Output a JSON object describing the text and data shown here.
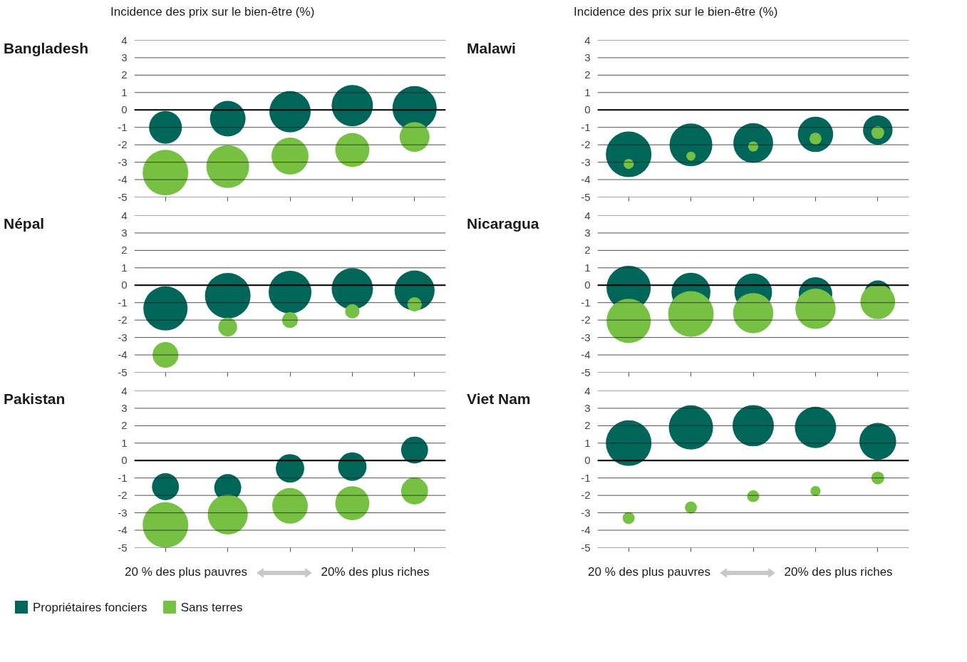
{
  "chart_data": [
    {
      "type": "bubble",
      "title": "Bangladesh",
      "ylabel": "Incidence des prix sur le bien-être (%)",
      "categories": [
        null,
        null,
        null,
        null,
        null
      ],
      "ylim": [
        -5,
        4
      ],
      "yticks": [
        -5,
        -4,
        -3,
        -2,
        -1,
        0,
        1,
        2,
        3,
        4
      ],
      "grid": "y",
      "tick_labels": "y",
      "ref_lines": [
        {
          "axis": "y",
          "value": 0,
          "color": "#000000"
        }
      ],
      "series": [
        {
          "color": "#00665a",
          "values": [
            -1.0,
            -0.5,
            -0.1,
            0.25,
            0.1
          ],
          "sizes": [
            0.52,
            0.61,
            0.82,
            0.82,
            0.94
          ]
        },
        {
          "color": "#76c043",
          "values": [
            -3.6,
            -3.25,
            -2.65,
            -2.3,
            -1.55
          ],
          "sizes": [
            1,
            0.88,
            0.66,
            0.56,
            0.43
          ]
        }
      ]
    },
    {
      "type": "bubble",
      "title": "Malawi",
      "ylabel": "Incidence des prix sur le bien-être (%)",
      "categories": [
        null,
        null,
        null,
        null,
        null
      ],
      "ylim": [
        -5,
        4
      ],
      "yticks": [
        -5,
        -4,
        -3,
        -2,
        -1,
        0,
        1,
        2,
        3,
        4
      ],
      "grid": "y",
      "tick_labels": "y",
      "ref_lines": [
        {
          "axis": "y",
          "value": 0,
          "color": "#000000"
        }
      ],
      "series": [
        {
          "color": "#00665a",
          "values": [
            -2.55,
            -2.0,
            -1.9,
            -1.4,
            -1.15
          ],
          "sizes": [
            1,
            0.88,
            0.76,
            0.6,
            0.42
          ]
        },
        {
          "color": "#76c043",
          "values": [
            -3.1,
            -2.65,
            -2.1,
            -1.65,
            -1.3
          ],
          "sizes": [
            0.05,
            0.04,
            0.05,
            0.07,
            0.08
          ]
        }
      ]
    },
    {
      "type": "bubble",
      "title": "Népal",
      "categories": [
        null,
        null,
        null,
        null,
        null
      ],
      "ylim": [
        -5,
        4
      ],
      "yticks": [
        -5,
        -4,
        -3,
        -2,
        -1,
        0,
        1,
        2,
        3,
        4
      ],
      "grid": "y",
      "tick_labels": "y",
      "ref_lines": [
        {
          "axis": "y",
          "value": 0,
          "color": "#000000"
        }
      ],
      "series": [
        {
          "color": "#00665a",
          "values": [
            -1.33,
            -0.6,
            -0.4,
            -0.2,
            -0.3
          ],
          "sizes": [
            0.94,
            1,
            0.88,
            0.82,
            0.77
          ]
        },
        {
          "color": "#76c043",
          "values": [
            -4.0,
            -2.4,
            -2.0,
            -1.5,
            -1.1
          ],
          "sizes": [
            0.32,
            0.17,
            0.12,
            0.1,
            0.1
          ]
        }
      ]
    },
    {
      "type": "bubble",
      "title": "Nicaragua",
      "categories": [
        null,
        null,
        null,
        null,
        null
      ],
      "ylim": [
        -5,
        4
      ],
      "yticks": [
        -5,
        -4,
        -3,
        -2,
        -1,
        0,
        1,
        2,
        3,
        4
      ],
      "grid": "y",
      "tick_labels": "y",
      "ref_lines": [
        {
          "axis": "y",
          "value": 0,
          "color": "#000000"
        }
      ],
      "series": [
        {
          "color": "#00665a",
          "values": [
            -0.15,
            -0.4,
            -0.4,
            -0.5,
            -0.5
          ],
          "sizes": [
            0.94,
            0.73,
            0.68,
            0.54,
            0.35
          ]
        },
        {
          "color": "#76c043",
          "values": [
            -2.05,
            -1.65,
            -1.6,
            -1.35,
            -0.95
          ],
          "sizes": [
            0.94,
            1,
            0.78,
            0.78,
            0.58
          ]
        }
      ]
    },
    {
      "type": "bubble",
      "title": "Pakistan",
      "categories": [
        null,
        null,
        null,
        null,
        null
      ],
      "ylim": [
        -5,
        4
      ],
      "yticks": [
        -5,
        -4,
        -3,
        -2,
        -1,
        0,
        1,
        2,
        3,
        4
      ],
      "grid": "y",
      "tick_labels": "y",
      "ref_lines": [
        {
          "axis": "y",
          "value": 0,
          "color": "#000000"
        }
      ],
      "legend": "bottom",
      "annotations": [
        "20 % des plus pauvres",
        "20% des plus riches"
      ],
      "series": [
        {
          "name": "Propriétaires fonciers",
          "color": "#00665a",
          "values": [
            -1.5,
            -1.55,
            -0.45,
            -0.35,
            0.6
          ],
          "sizes": [
            0.35,
            0.35,
            0.39,
            0.39,
            0.35
          ]
        },
        {
          "name": "Sans terres",
          "color": "#76c043",
          "values": [
            -3.7,
            -3.1,
            -2.6,
            -2.45,
            -1.75
          ],
          "sizes": [
            1,
            0.77,
            0.61,
            0.56,
            0.35
          ]
        }
      ]
    },
    {
      "type": "bubble",
      "title": "Viet Nam",
      "categories": [
        null,
        null,
        null,
        null,
        null
      ],
      "ylim": [
        -5,
        4
      ],
      "yticks": [
        -5,
        -4,
        -3,
        -2,
        -1,
        0,
        1,
        2,
        3,
        4
      ],
      "grid": "y",
      "tick_labels": "y",
      "ref_lines": [
        {
          "axis": "y",
          "value": 0,
          "color": "#000000"
        }
      ],
      "annotations": [
        "20 % des plus pauvres",
        "20% des plus riches"
      ],
      "series": [
        {
          "color": "#00665a",
          "values": [
            1.0,
            1.9,
            2.0,
            1.9,
            1.1
          ],
          "sizes": [
            1,
            0.94,
            0.82,
            0.82,
            0.65
          ]
        },
        {
          "color": "#76c043",
          "values": [
            -3.3,
            -2.7,
            -2.05,
            -1.75,
            -1.0
          ],
          "sizes": [
            0.07,
            0.07,
            0.07,
            0.05,
            0.08
          ]
        }
      ]
    }
  ]
}
